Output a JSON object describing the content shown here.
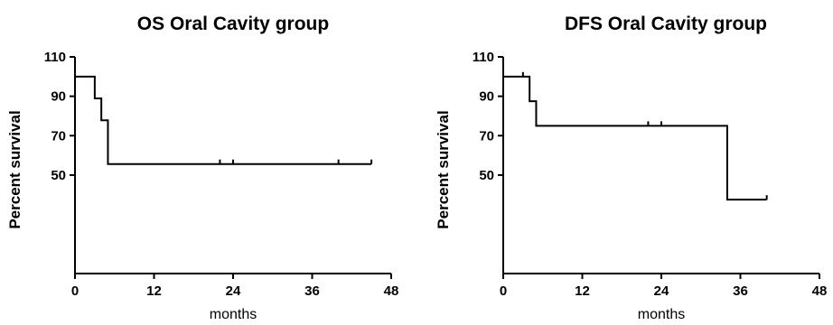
{
  "chart_data": [
    {
      "type": "line",
      "subtype": "kaplan-meier step",
      "title": "OS Oral Cavity group",
      "xlabel": "months",
      "ylabel": "Percent survival",
      "xlim": [
        0,
        48
      ],
      "ylim": [
        0,
        110
      ],
      "xticks": [
        0,
        12,
        24,
        36,
        48
      ],
      "yticks": [
        50,
        70,
        90,
        110
      ],
      "grid": false,
      "legend": "none",
      "steps": [
        {
          "x": 0,
          "y": 100
        },
        {
          "x": 3,
          "y": 88.9
        },
        {
          "x": 4,
          "y": 77.8
        },
        {
          "x": 5,
          "y": 55.6
        }
      ],
      "end_x": 45,
      "censored": [
        {
          "x": 22,
          "y": 55.6
        },
        {
          "x": 24,
          "y": 55.6
        },
        {
          "x": 40,
          "y": 55.6
        },
        {
          "x": 45,
          "y": 55.6
        }
      ]
    },
    {
      "type": "line",
      "subtype": "kaplan-meier step",
      "title": "DFS Oral Cavity group",
      "xlabel": "months",
      "ylabel": "Percent survival",
      "xlim": [
        0,
        48
      ],
      "ylim": [
        0,
        110
      ],
      "xticks": [
        0,
        12,
        24,
        36,
        48
      ],
      "yticks": [
        50,
        70,
        90,
        110
      ],
      "grid": false,
      "legend": "none",
      "steps": [
        {
          "x": 0,
          "y": 100
        },
        {
          "x": 4,
          "y": 87.5
        },
        {
          "x": 5,
          "y": 75
        },
        {
          "x": 34,
          "y": 37.5
        }
      ],
      "end_x": 40,
      "censored": [
        {
          "x": 3,
          "y": 100
        },
        {
          "x": 22,
          "y": 75
        },
        {
          "x": 24,
          "y": 75
        },
        {
          "x": 40,
          "y": 37.5
        }
      ]
    }
  ]
}
